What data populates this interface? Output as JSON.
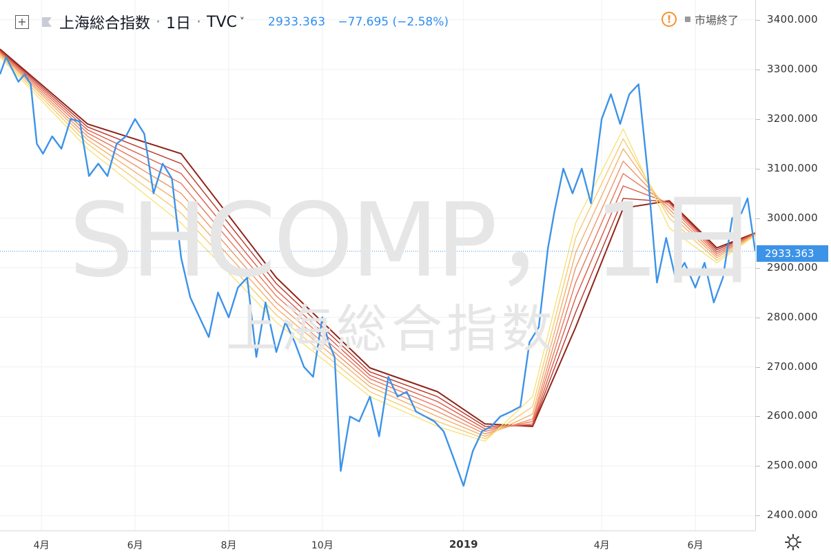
{
  "header": {
    "expand_symbol": "+",
    "symbol_name": "上海総合指数",
    "separator": "·",
    "interval": "1日",
    "source": "TVC",
    "source_chevron": "˅",
    "last_price": "2933.363",
    "change": "−77.695 (−2.58%)",
    "alert_symbol": "!",
    "market_status": "市場終了"
  },
  "watermark": {
    "symbol": "SHCOMP，1日",
    "name": "上海総合指数"
  },
  "price_tag": "2933.363",
  "colors": {
    "price_line": "#3c93e8",
    "ribbon": [
      "#f7e27a",
      "#f6cc72",
      "#f3b06b",
      "#ee9466",
      "#e8775a",
      "#dc5a45",
      "#b8382c",
      "#8f2418"
    ],
    "status_alert": "#f5922f"
  },
  "icons": {
    "expand": "plus-square-icon",
    "flag": "flag-icon",
    "alert": "exclamation-circle-icon",
    "settings": "gear-icon"
  },
  "chart_data": {
    "type": "line",
    "title": "上海総合指数",
    "interval": "1日",
    "source": "TVC",
    "x_axis_labels": [
      "4月",
      "6月",
      "8月",
      "10月",
      "2019",
      "4月",
      "6月"
    ],
    "x_axis_dates": [
      "2018-04-01",
      "2018-06-01",
      "2018-08-01",
      "2018-10-01",
      "2019-01-01",
      "2019-04-01",
      "2019-06-01"
    ],
    "x_range": [
      "2018-03-05",
      "2019-07-10"
    ],
    "ylim": [
      2370,
      3440
    ],
    "y_ticks": [
      "2400.000",
      "2500.000",
      "2600.000",
      "2700.000",
      "2800.000",
      "2900.000",
      "3000.000",
      "3100.000",
      "3200.000",
      "3300.000",
      "3400.000"
    ],
    "y_tick_values": [
      2400,
      2500,
      2600,
      2700,
      2800,
      2900,
      3000,
      3100,
      3200,
      3300,
      3400
    ],
    "grid": true,
    "last_value": 2933.363,
    "change": -77.695,
    "change_pct": -2.58,
    "series": [
      {
        "type": "price",
        "x": [
          "2018-03-05",
          "2018-03-09",
          "2018-03-13",
          "2018-03-17",
          "2018-03-21",
          "2018-03-25",
          "2018-03-29",
          "2018-04-02",
          "2018-04-08",
          "2018-04-14",
          "2018-04-20",
          "2018-04-26",
          "2018-05-02",
          "2018-05-08",
          "2018-05-14",
          "2018-05-20",
          "2018-05-26",
          "2018-06-01",
          "2018-06-07",
          "2018-06-13",
          "2018-06-19",
          "2018-06-25",
          "2018-07-01",
          "2018-07-07",
          "2018-07-13",
          "2018-07-19",
          "2018-07-25",
          "2018-08-01",
          "2018-08-07",
          "2018-08-13",
          "2018-08-19",
          "2018-08-25",
          "2018-09-01",
          "2018-09-07",
          "2018-09-13",
          "2018-09-19",
          "2018-09-25",
          "2018-10-01",
          "2018-10-05",
          "2018-10-09",
          "2018-10-13",
          "2018-10-19",
          "2018-10-25",
          "2018-11-01",
          "2018-11-07",
          "2018-11-13",
          "2018-11-19",
          "2018-11-25",
          "2018-12-01",
          "2018-12-07",
          "2018-12-13",
          "2018-12-19",
          "2018-12-25",
          "2019-01-01",
          "2019-01-07",
          "2019-01-13",
          "2019-01-19",
          "2019-01-25",
          "2019-02-01",
          "2019-02-07",
          "2019-02-13",
          "2019-02-19",
          "2019-02-25",
          "2019-03-01",
          "2019-03-07",
          "2019-03-13",
          "2019-03-19",
          "2019-03-25",
          "2019-04-01",
          "2019-04-07",
          "2019-04-13",
          "2019-04-19",
          "2019-04-25",
          "2019-05-01",
          "2019-05-07",
          "2019-05-13",
          "2019-05-19",
          "2019-05-25",
          "2019-06-01",
          "2019-06-07",
          "2019-06-13",
          "2019-06-19",
          "2019-06-25",
          "2019-07-01",
          "2019-07-05",
          "2019-07-10"
        ],
        "values": [
          3290,
          3325,
          3300,
          3275,
          3290,
          3270,
          3150,
          3130,
          3165,
          3140,
          3200,
          3195,
          3085,
          3110,
          3085,
          3150,
          3165,
          3200,
          3170,
          3050,
          3110,
          3080,
          2920,
          2840,
          2800,
          2760,
          2850,
          2800,
          2860,
          2880,
          2720,
          2830,
          2730,
          2790,
          2750,
          2700,
          2680,
          2800,
          2750,
          2720,
          2490,
          2600,
          2590,
          2640,
          2560,
          2680,
          2640,
          2650,
          2610,
          2600,
          2590,
          2570,
          2520,
          2460,
          2530,
          2570,
          2580,
          2600,
          2610,
          2620,
          2750,
          2780,
          2940,
          3010,
          3100,
          3050,
          3100,
          3030,
          3200,
          3250,
          3190,
          3250,
          3270,
          3090,
          2870,
          2960,
          2880,
          2910,
          2860,
          2910,
          2830,
          2880,
          3000,
          3010,
          3040,
          2933.363
        ]
      },
      {
        "type": "moving-average",
        "period": 8,
        "x": [
          "2018-03-05",
          "2018-05-01",
          "2018-07-01",
          "2018-09-01",
          "2018-11-01",
          "2018-12-15",
          "2019-01-15",
          "2019-02-15",
          "2019-03-15",
          "2019-04-15",
          "2019-05-15",
          "2019-06-15",
          "2019-07-10"
        ],
        "values": [
          3325,
          3140,
          2990,
          2790,
          2640,
          2580,
          2550,
          2640,
          2990,
          3180,
          2980,
          2910,
          2965
        ]
      },
      {
        "type": "moving-average",
        "period": 13,
        "x": [
          "2018-03-05",
          "2018-05-01",
          "2018-07-01",
          "2018-09-01",
          "2018-11-01",
          "2018-12-15",
          "2019-01-15",
          "2019-02-15",
          "2019-03-15",
          "2019-04-15",
          "2019-05-15",
          "2019-06-15",
          "2019-07-10"
        ],
        "values": [
          3328,
          3150,
          3010,
          2805,
          2650,
          2590,
          2555,
          2620,
          2960,
          3160,
          3000,
          2915,
          2966
        ]
      },
      {
        "type": "moving-average",
        "period": 21,
        "x": [
          "2018-03-05",
          "2018-05-01",
          "2018-07-01",
          "2018-09-01",
          "2018-11-01",
          "2018-12-15",
          "2019-01-15",
          "2019-02-15",
          "2019-03-15",
          "2019-04-15",
          "2019-05-15",
          "2019-06-15",
          "2019-07-10"
        ],
        "values": [
          3331,
          3158,
          3030,
          2818,
          2660,
          2600,
          2560,
          2605,
          2930,
          3140,
          3010,
          2920,
          2967
        ]
      },
      {
        "type": "moving-average",
        "period": 34,
        "x": [
          "2018-03-05",
          "2018-05-01",
          "2018-07-01",
          "2018-09-01",
          "2018-11-01",
          "2018-12-15",
          "2019-01-15",
          "2019-02-15",
          "2019-03-15",
          "2019-04-15",
          "2019-05-15",
          "2019-06-15",
          "2019-07-10"
        ],
        "values": [
          3333,
          3165,
          3050,
          2830,
          2668,
          2610,
          2565,
          2595,
          2900,
          3115,
          3018,
          2924,
          2968
        ]
      },
      {
        "type": "moving-average",
        "period": 55,
        "x": [
          "2018-03-05",
          "2018-05-01",
          "2018-07-01",
          "2018-09-01",
          "2018-11-01",
          "2018-12-15",
          "2019-01-15",
          "2019-02-15",
          "2019-03-15",
          "2019-04-15",
          "2019-05-15",
          "2019-06-15",
          "2019-07-10"
        ],
        "values": [
          3335,
          3172,
          3070,
          2843,
          2676,
          2620,
          2570,
          2590,
          2870,
          3090,
          3025,
          2928,
          2968
        ]
      },
      {
        "type": "moving-average",
        "period": 89,
        "x": [
          "2018-03-05",
          "2018-05-01",
          "2018-07-01",
          "2018-09-01",
          "2018-11-01",
          "2018-12-15",
          "2019-01-15",
          "2019-02-15",
          "2019-03-15",
          "2019-04-15",
          "2019-05-15",
          "2019-06-15",
          "2019-07-10"
        ],
        "values": [
          3337,
          3178,
          3090,
          2855,
          2683,
          2630,
          2575,
          2585,
          2840,
          3065,
          3030,
          2932,
          2969
        ]
      },
      {
        "type": "moving-average",
        "period": 144,
        "x": [
          "2018-03-05",
          "2018-05-01",
          "2018-07-01",
          "2018-09-01",
          "2018-11-01",
          "2018-12-15",
          "2019-01-15",
          "2019-02-15",
          "2019-03-15",
          "2019-04-15",
          "2019-05-15",
          "2019-06-15",
          "2019-07-10"
        ],
        "values": [
          3339,
          3184,
          3110,
          2868,
          2690,
          2640,
          2580,
          2582,
          2810,
          3040,
          3033,
          2936,
          2970
        ]
      },
      {
        "type": "moving-average",
        "period": 233,
        "x": [
          "2018-03-05",
          "2018-05-01",
          "2018-07-01",
          "2018-09-01",
          "2018-11-01",
          "2018-12-15",
          "2019-01-15",
          "2019-02-15",
          "2019-03-15",
          "2019-04-15",
          "2019-05-15",
          "2019-06-15",
          "2019-07-10"
        ],
        "values": [
          3341,
          3190,
          3130,
          2880,
          2698,
          2650,
          2585,
          2580,
          2780,
          3020,
          3035,
          2940,
          2970
        ]
      }
    ]
  }
}
